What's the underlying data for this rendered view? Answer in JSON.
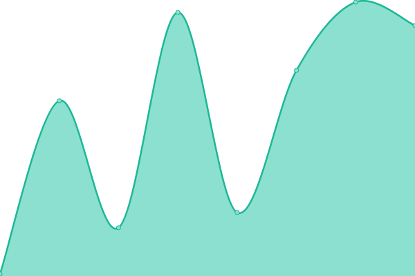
{
  "chart_data": {
    "type": "area",
    "categories": [
      null,
      null,
      null,
      null,
      null,
      null,
      null,
      null
    ],
    "values": [
      3,
      254,
      70,
      382,
      92,
      298,
      397,
      363
    ],
    "ylim": [
      0,
      400
    ],
    "color": "#1db795",
    "fill": "#8be0cf"
  }
}
